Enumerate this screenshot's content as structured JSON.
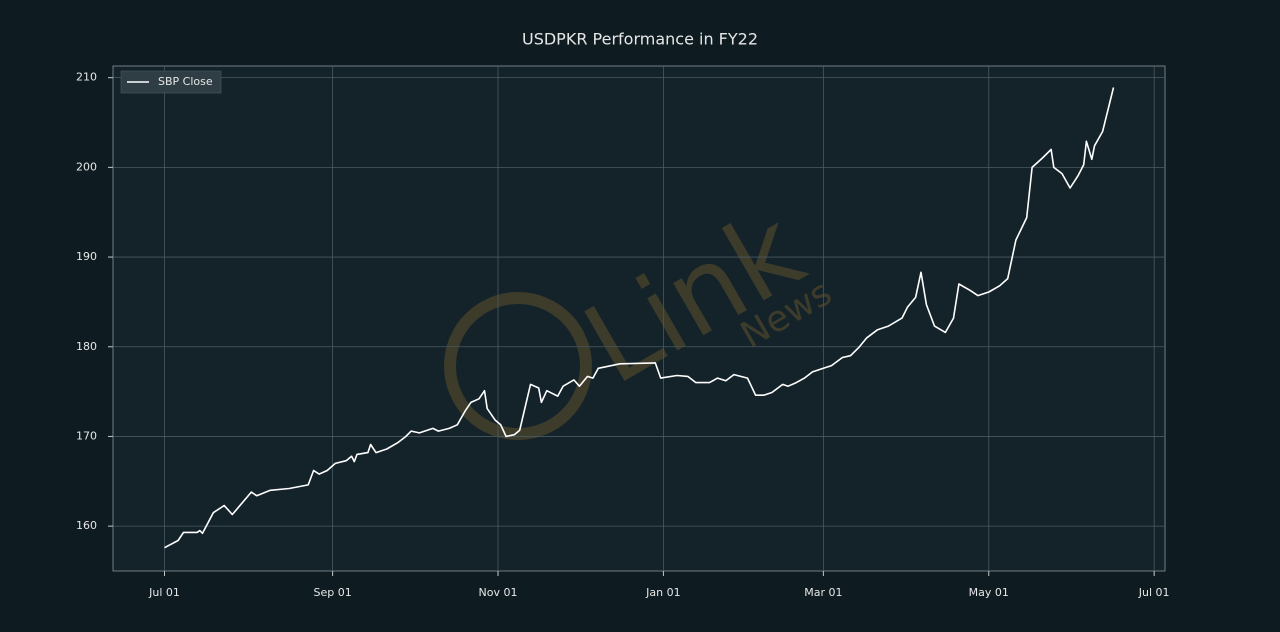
{
  "chart_data": {
    "type": "line",
    "title": "USDPKR Performance in FY22",
    "watermark": "Link",
    "watermark_sub": "News",
    "x": [
      "Jul 01",
      "Jul 06",
      "Jul 08",
      "Jul 13",
      "Jul 14",
      "Jul 15",
      "Jul 19",
      "Jul 23",
      "Jul 26",
      "Jul 28",
      "Aug 02",
      "Aug 04",
      "Aug 09",
      "Aug 16",
      "Aug 23",
      "Aug 25",
      "Aug 27",
      "Aug 30",
      "Sep 02",
      "Sep 06",
      "Sep 08",
      "Sep 09",
      "Sep 10",
      "Sep 14",
      "Sep 15",
      "Sep 17",
      "Sep 21",
      "Sep 25",
      "Sep 28",
      "Sep 30",
      "Oct 03",
      "Oct 08",
      "Oct 10",
      "Oct 14",
      "Oct 17",
      "Oct 20",
      "Oct 22",
      "Oct 25",
      "Oct 27",
      "Oct 28",
      "Oct 31",
      "Nov 02",
      "Nov 04",
      "Nov 07",
      "Nov 09",
      "Nov 13",
      "Nov 16",
      "Nov 17",
      "Nov 19",
      "Nov 23",
      "Nov 25",
      "Nov 29",
      "Dec 01",
      "Dec 04",
      "Dec 06",
      "Dec 08",
      "Dec 16",
      "Dec 29",
      "Dec 31",
      "Jan 06",
      "Jan 10",
      "Jan 13",
      "Jan 18",
      "Jan 21",
      "Jan 24",
      "Jan 27",
      "Feb 01",
      "Feb 04",
      "Feb 07",
      "Feb 10",
      "Feb 14",
      "Feb 16",
      "Feb 19",
      "Feb 22",
      "Feb 25",
      "Mar 01",
      "Mar 04",
      "Mar 08",
      "Mar 11",
      "Mar 14",
      "Mar 17",
      "Mar 21",
      "Mar 25",
      "Mar 30",
      "Apr 01",
      "Apr 04",
      "Apr 06",
      "Apr 08",
      "Apr 11",
      "Apr 15",
      "Apr 18",
      "Apr 20",
      "Apr 24",
      "Apr 27",
      "May 01",
      "May 05",
      "May 08",
      "May 11",
      "May 15",
      "May 17",
      "May 21",
      "May 24",
      "May 25",
      "May 28",
      "May 31",
      "Jun 03",
      "Jun 05",
      "Jun 06",
      "Jun 08",
      "Jun 09",
      "Jun 12",
      "Jun 16"
    ],
    "series": [
      {
        "name": "SBP Close",
        "color": "#ffffff",
        "values": [
          157.6,
          158.4,
          159.3,
          159.3,
          159.5,
          159.2,
          161.5,
          162.3,
          161.3,
          162,
          163.8,
          163.4,
          164,
          164.2,
          164.6,
          166.2,
          165.8,
          166.2,
          167,
          167.3,
          167.8,
          167.2,
          168,
          168.2,
          169.1,
          168.2,
          168.6,
          169.3,
          170,
          170.6,
          170.4,
          170.9,
          170.6,
          170.9,
          171.3,
          172.9,
          173.8,
          174.2,
          175.1,
          173.1,
          171.8,
          171.3,
          170,
          170.2,
          170.7,
          175.8,
          175.4,
          173.8,
          175.1,
          174.5,
          175.6,
          176.3,
          175.6,
          176.7,
          176.5,
          177.6,
          178.1,
          178.2,
          176.5,
          176.8,
          176.7,
          176,
          176,
          176.5,
          176.2,
          176.9,
          176.5,
          174.6,
          174.6,
          174.9,
          175.8,
          175.6,
          176,
          176.5,
          177.2,
          177.6,
          177.9,
          178.8,
          179,
          179.9,
          181,
          181.9,
          182.3,
          183.2,
          184.4,
          185.5,
          188.3,
          184.7,
          182.3,
          181.6,
          183.2,
          187,
          186.3,
          185.7,
          186.1,
          186.8,
          187.6,
          191.9,
          194.4,
          200,
          201.1,
          202,
          200,
          199.3,
          197.7,
          199.1,
          200.3,
          202.9,
          200.9,
          202.4,
          204,
          208.9
        ]
      }
    ],
    "xlim": [
      "Jun 12",
      "Jul 05"
    ],
    "xticks": [
      "Jul 01",
      "Sep 01",
      "Nov 01",
      "Jan 01",
      "Mar 01",
      "May 01",
      "Jul 01"
    ],
    "ylim": [
      155,
      211.3
    ],
    "yticks": [
      160,
      170,
      180,
      190,
      200,
      210
    ],
    "grid": true,
    "legend": "upper left"
  }
}
